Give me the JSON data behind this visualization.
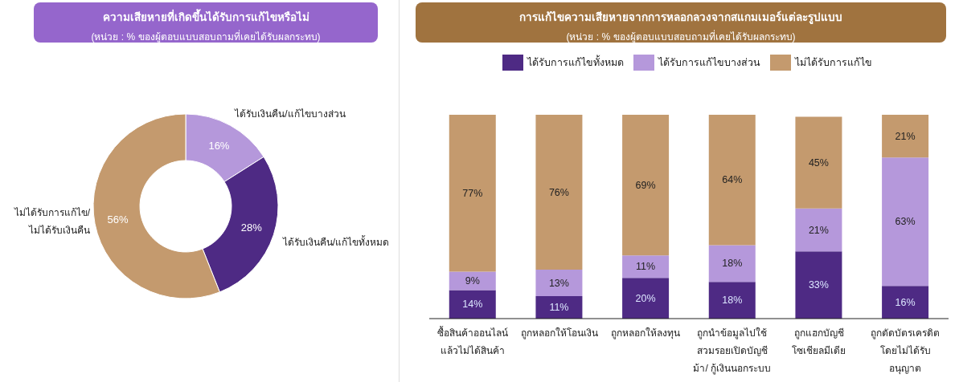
{
  "chart_data": [
    {
      "type": "donut",
      "title": "ความเสียหายที่เกิดขึ้นได้รับการแก้ไขหรือไม่",
      "subtitle": "(หน่วย : % ของผู้ตอบแบบสอบถามที่เคยได้รับผลกระทบ)",
      "categories": [
        "ได้รับเงินคืน/แก้ไขบางส่วน",
        "ได้รับเงินคืน/แก้ไขทั้งหมด",
        "ไม่ได้รับการแก้ไข/\nไม่ได้รับเงินคืน"
      ],
      "values": [
        16,
        28,
        56
      ],
      "colors": [
        "#b598db",
        "#4e2a84",
        "#c49a6e"
      ],
      "value_labels": [
        "16%",
        "28%",
        "56%"
      ]
    },
    {
      "type": "bar",
      "stacked": true,
      "title": "การแก้ไขความเสียหายจากการหลอกลวงจากสแกมเมอร์แต่ละรูปแบบ",
      "subtitle": "(หน่วย : % ของผู้ตอบแบบสอบถามที่เคยได้รับผลกระทบ)",
      "legend": "top",
      "categories": [
        "ซื้อสินค้าออนไลน์\nแล้วไม่ได้สินค้า",
        "ถูกหลอกให้โอนเงิน",
        "ถูกหลอกให้ลงทุน",
        "ถูกนำข้อมูลไปใช้\nสวมรอยเปิดบัญชี\nม้า/ กู้เงินนอกระบบ",
        "ถูกแฮกบัญชี\nโซเชียลมีเดีย",
        "ถูกตัดบัตรเครดิต\nโดยไม่ได้รับ\nอนุญาต"
      ],
      "series": [
        {
          "name": "ได้รับการแก้ไขทั้งหมด",
          "color": "#4e2a84",
          "values": [
            14,
            11,
            20,
            18,
            33,
            16
          ],
          "value_labels": [
            "14%",
            "11%",
            "20%",
            "18%",
            "33%",
            "16%"
          ]
        },
        {
          "name": "ได้รับการแก้ไขบางส่วน",
          "color": "#b598db",
          "values": [
            9,
            13,
            11,
            18,
            21,
            63
          ],
          "value_labels": [
            "9%",
            "13%",
            "11%",
            "18%",
            "21%",
            "63%"
          ]
        },
        {
          "name": "ไม่ได้รับการแก้ไข",
          "color": "#c49a6e",
          "values": [
            77,
            76,
            69,
            64,
            45,
            21
          ],
          "value_labels": [
            "77%",
            "76%",
            "69%",
            "64%",
            "45%",
            "21%"
          ]
        }
      ]
    }
  ]
}
